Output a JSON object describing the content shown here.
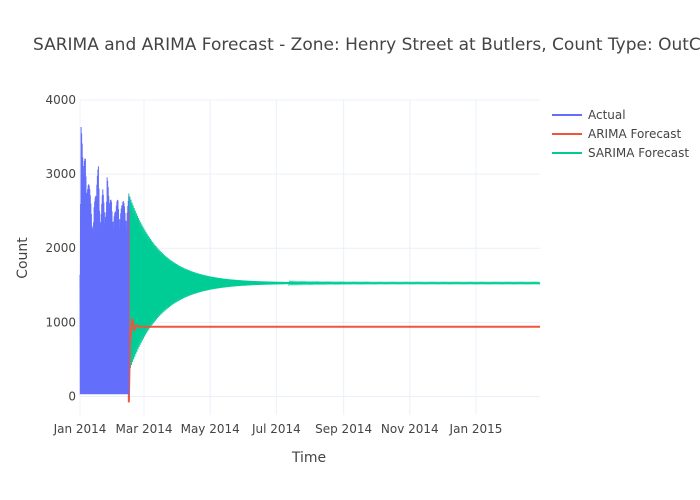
{
  "chart_data": {
    "type": "line",
    "title": "SARIMA and ARIMA Forecast - Zone: Henry Street at Butlers, Count Type: OutCount, I",
    "xlabel": "Time",
    "ylabel": "Count",
    "xlim": [
      "2014-01-01",
      "2015-03-01"
    ],
    "ylim": [
      -250,
      4000
    ],
    "x_ticks": [
      "2014-01-01",
      "2014-03-01",
      "2014-05-01",
      "2014-07-01",
      "2014-09-01",
      "2014-11-01",
      "2015-01-01"
    ],
    "x_tick_labels": [
      "Jan 2014",
      "Mar 2014",
      "May 2014",
      "Jul 2014",
      "Sep 2014",
      "Nov 2014",
      "Jan 2015"
    ],
    "y_ticks": [
      0,
      1000,
      2000,
      3000,
      4000
    ],
    "y_tick_labels": [
      "0",
      "1000",
      "2000",
      "3000",
      "4000"
    ],
    "grid": true,
    "legend_position": "top-right",
    "series": [
      {
        "name": "Actual",
        "color": "#636efa",
        "oscillating": true,
        "x": [
          "2014-01-01",
          "2014-01-02",
          "2014-01-04",
          "2014-01-06",
          "2014-01-08",
          "2014-01-10",
          "2014-01-12",
          "2014-01-14",
          "2014-01-16",
          "2014-01-18",
          "2014-01-20",
          "2014-01-22",
          "2014-01-24",
          "2014-01-26",
          "2014-01-28",
          "2014-01-30",
          "2014-02-01",
          "2014-02-03",
          "2014-02-05",
          "2014-02-07",
          "2014-02-09",
          "2014-02-11",
          "2014-02-13",
          "2014-02-15"
        ],
        "high": [
          2000,
          4000,
          3000,
          3500,
          3100,
          2800,
          2500,
          2850,
          2700,
          3350,
          2600,
          2800,
          2500,
          3350,
          2550,
          2800,
          2700,
          2500,
          2800,
          2750,
          2600,
          2700,
          2750,
          2700
        ],
        "low": [
          30,
          30,
          30,
          30,
          30,
          30,
          30,
          30,
          30,
          30,
          30,
          30,
          30,
          30,
          30,
          30,
          30,
          30,
          30,
          30,
          30,
          30,
          30,
          30
        ]
      },
      {
        "name": "ARIMA Forecast",
        "color": "#ef553b",
        "x": [
          "2014-02-15",
          "2014-02-15",
          "2014-02-16",
          "2014-02-18",
          "2014-02-20",
          "2014-02-22",
          "2014-02-25",
          "2015-03-01"
        ],
        "values": [
          2500,
          -80,
          700,
          1050,
          900,
          960,
          940,
          940
        ]
      },
      {
        "name": "SARIMA Forecast",
        "color": "#00cc96",
        "oscillating": true,
        "x_start": "2014-02-15",
        "x_end": "2015-03-01",
        "center": 1530,
        "start_amplitude": 1200,
        "decay_days": 28
      }
    ]
  }
}
